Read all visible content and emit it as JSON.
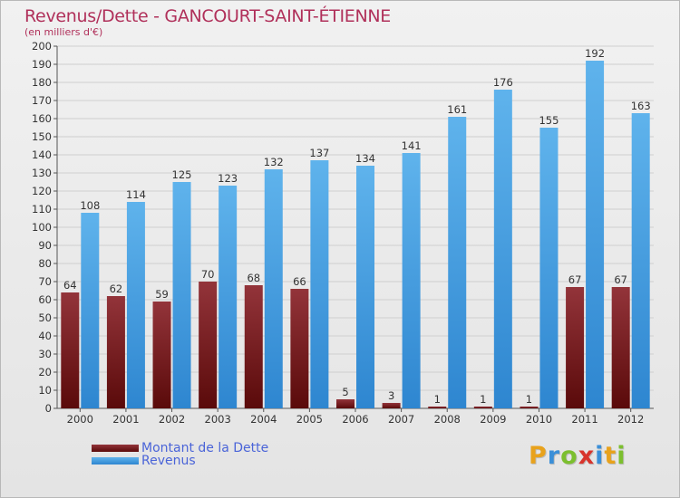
{
  "chart_data": {
    "type": "bar",
    "title": "Revenus/Dette - GANCOURT-SAINT-ÉTIENNE",
    "subtitle": "(en milliers d'€)",
    "categories": [
      "2000",
      "2001",
      "2002",
      "2003",
      "2004",
      "2005",
      "2006",
      "2007",
      "2008",
      "2009",
      "2010",
      "2011",
      "2012"
    ],
    "series": [
      {
        "name": "Montant de la Dette",
        "color": "#7a1515",
        "values": [
          64,
          62,
          59,
          70,
          68,
          66,
          5,
          3,
          1,
          1,
          1,
          67,
          67
        ]
      },
      {
        "name": "Revenus",
        "color": "#4aa3e6",
        "values": [
          108,
          114,
          125,
          123,
          132,
          137,
          134,
          141,
          161,
          176,
          155,
          192,
          163
        ]
      }
    ],
    "ylim": [
      0,
      200
    ],
    "ytick_step": 10,
    "grid": true,
    "legend": "bottom-left"
  },
  "logo": {
    "text": "Proxiti",
    "letter_colors": [
      "#e8a21c",
      "#3a8fd8",
      "#7cbf2e",
      "#d8342c",
      "#3a8fd8",
      "#e8a21c",
      "#7cbf2e"
    ]
  }
}
